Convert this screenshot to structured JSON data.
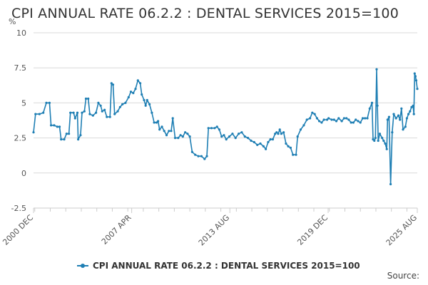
{
  "title": "CPI ANNUAL RATE 06.2.2 : DENTAL SERVICES 2015=100",
  "source": "Source:",
  "colors": {
    "line": "#1f7fb4",
    "grid": "#d9d9d9",
    "text": "#555555",
    "axis": "#cccccc"
  },
  "chart_data": {
    "type": "line",
    "title": "CPI ANNUAL RATE 06.2.2 : DENTAL SERVICES 2015=100",
    "ylabel": "%",
    "xlabel": "",
    "ylim": [
      -2.5,
      10
    ],
    "yticks": [
      "10",
      "7.5",
      "5",
      "2.5",
      "0",
      "-2.5"
    ],
    "xlim": [
      2000.92,
      2025.67
    ],
    "xticks": [
      {
        "label": "2000 DEC",
        "x": 2000.92
      },
      {
        "label": "2007 APR",
        "x": 2007.25
      },
      {
        "label": "2013 AUG",
        "x": 2013.58
      },
      {
        "label": "2019 DEC",
        "x": 2019.92
      },
      {
        "label": "2025 AUG",
        "x": 2025.67
      }
    ],
    "legend": "bottom-center",
    "grid": true,
    "series": [
      {
        "name": "CPI ANNUAL RATE 06.2.2 : DENTAL SERVICES 2015=100",
        "points": [
          [
            2000.92,
            2.9
          ],
          [
            2001.05,
            4.2
          ],
          [
            2001.3,
            4.2
          ],
          [
            2001.55,
            4.3
          ],
          [
            2001.75,
            5.0
          ],
          [
            2001.95,
            5.0
          ],
          [
            2002.05,
            3.4
          ],
          [
            2002.25,
            3.4
          ],
          [
            2002.45,
            3.3
          ],
          [
            2002.6,
            3.3
          ],
          [
            2002.7,
            2.4
          ],
          [
            2002.9,
            2.4
          ],
          [
            2003.05,
            2.8
          ],
          [
            2003.2,
            2.8
          ],
          [
            2003.3,
            4.3
          ],
          [
            2003.5,
            4.3
          ],
          [
            2003.6,
            3.9
          ],
          [
            2003.75,
            4.3
          ],
          [
            2003.8,
            2.4
          ],
          [
            2003.95,
            2.7
          ],
          [
            2004.05,
            4.3
          ],
          [
            2004.2,
            4.4
          ],
          [
            2004.3,
            5.3
          ],
          [
            2004.45,
            5.3
          ],
          [
            2004.55,
            4.2
          ],
          [
            2004.75,
            4.1
          ],
          [
            2004.95,
            4.3
          ],
          [
            2005.1,
            5.0
          ],
          [
            2005.25,
            4.8
          ],
          [
            2005.35,
            4.4
          ],
          [
            2005.5,
            4.5
          ],
          [
            2005.65,
            4.0
          ],
          [
            2005.85,
            4.0
          ],
          [
            2005.95,
            6.4
          ],
          [
            2006.05,
            6.3
          ],
          [
            2006.15,
            4.2
          ],
          [
            2006.35,
            4.4
          ],
          [
            2006.5,
            4.7
          ],
          [
            2006.65,
            4.9
          ],
          [
            2006.85,
            5.0
          ],
          [
            2007.05,
            5.4
          ],
          [
            2007.2,
            5.8
          ],
          [
            2007.35,
            5.7
          ],
          [
            2007.5,
            6.0
          ],
          [
            2007.65,
            6.6
          ],
          [
            2007.8,
            6.4
          ],
          [
            2007.9,
            5.6
          ],
          [
            2008.05,
            5.2
          ],
          [
            2008.15,
            4.8
          ],
          [
            2008.25,
            5.2
          ],
          [
            2008.4,
            4.9
          ],
          [
            2008.55,
            4.3
          ],
          [
            2008.7,
            3.6
          ],
          [
            2008.85,
            3.6
          ],
          [
            2008.95,
            3.7
          ],
          [
            2009.05,
            3.1
          ],
          [
            2009.2,
            3.3
          ],
          [
            2009.35,
            3.0
          ],
          [
            2009.5,
            2.7
          ],
          [
            2009.65,
            3.0
          ],
          [
            2009.8,
            3.0
          ],
          [
            2009.9,
            3.9
          ],
          [
            2010.05,
            2.5
          ],
          [
            2010.25,
            2.5
          ],
          [
            2010.4,
            2.7
          ],
          [
            2010.55,
            2.6
          ],
          [
            2010.7,
            2.9
          ],
          [
            2010.85,
            2.8
          ],
          [
            2011.0,
            2.6
          ],
          [
            2011.15,
            1.5
          ],
          [
            2011.35,
            1.3
          ],
          [
            2011.55,
            1.2
          ],
          [
            2011.75,
            1.2
          ],
          [
            2011.95,
            1.0
          ],
          [
            2012.1,
            1.2
          ],
          [
            2012.2,
            3.2
          ],
          [
            2012.4,
            3.2
          ],
          [
            2012.6,
            3.2
          ],
          [
            2012.75,
            3.3
          ],
          [
            2012.9,
            3.1
          ],
          [
            2013.05,
            2.6
          ],
          [
            2013.2,
            2.7
          ],
          [
            2013.35,
            2.4
          ],
          [
            2013.55,
            2.6
          ],
          [
            2013.75,
            2.8
          ],
          [
            2013.95,
            2.5
          ],
          [
            2014.15,
            2.8
          ],
          [
            2014.35,
            2.9
          ],
          [
            2014.55,
            2.6
          ],
          [
            2014.75,
            2.5
          ],
          [
            2014.95,
            2.3
          ],
          [
            2015.15,
            2.2
          ],
          [
            2015.35,
            2.0
          ],
          [
            2015.55,
            2.1
          ],
          [
            2015.75,
            1.9
          ],
          [
            2015.9,
            1.7
          ],
          [
            2016.05,
            2.2
          ],
          [
            2016.2,
            2.4
          ],
          [
            2016.35,
            2.4
          ],
          [
            2016.5,
            2.8
          ],
          [
            2016.6,
            2.9
          ],
          [
            2016.7,
            2.8
          ],
          [
            2016.8,
            3.1
          ],
          [
            2016.9,
            2.8
          ],
          [
            2017.05,
            2.9
          ],
          [
            2017.2,
            2.1
          ],
          [
            2017.35,
            1.9
          ],
          [
            2017.5,
            1.8
          ],
          [
            2017.65,
            1.3
          ],
          [
            2017.85,
            1.3
          ],
          [
            2017.95,
            2.6
          ],
          [
            2018.15,
            3.1
          ],
          [
            2018.35,
            3.4
          ],
          [
            2018.55,
            3.8
          ],
          [
            2018.75,
            3.9
          ],
          [
            2018.9,
            4.3
          ],
          [
            2019.05,
            4.2
          ],
          [
            2019.2,
            3.9
          ],
          [
            2019.35,
            3.7
          ],
          [
            2019.5,
            3.6
          ],
          [
            2019.65,
            3.8
          ],
          [
            2019.85,
            3.8
          ],
          [
            2019.95,
            3.9
          ],
          [
            2020.15,
            3.8
          ],
          [
            2020.3,
            3.8
          ],
          [
            2020.45,
            3.7
          ],
          [
            2020.6,
            3.9
          ],
          [
            2020.8,
            3.7
          ],
          [
            2020.95,
            3.9
          ],
          [
            2021.1,
            3.9
          ],
          [
            2021.25,
            3.8
          ],
          [
            2021.4,
            3.6
          ],
          [
            2021.55,
            3.6
          ],
          [
            2021.7,
            3.8
          ],
          [
            2021.85,
            3.7
          ],
          [
            2022.0,
            3.6
          ],
          [
            2022.15,
            3.9
          ],
          [
            2022.3,
            3.9
          ],
          [
            2022.45,
            3.9
          ],
          [
            2022.6,
            4.6
          ],
          [
            2022.75,
            5.0
          ],
          [
            2022.82,
            2.4
          ],
          [
            2022.9,
            2.3
          ],
          [
            2022.97,
            2.5
          ],
          [
            2023.05,
            7.4
          ],
          [
            2023.1,
            4.8
          ],
          [
            2023.15,
            2.3
          ],
          [
            2023.25,
            2.8
          ],
          [
            2023.4,
            2.5
          ],
          [
            2023.5,
            2.3
          ],
          [
            2023.6,
            2.1
          ],
          [
            2023.7,
            1.7
          ],
          [
            2023.75,
            3.8
          ],
          [
            2023.85,
            4.0
          ],
          [
            2023.95,
            -0.8
          ],
          [
            2024.05,
            2.9
          ],
          [
            2024.15,
            4.2
          ],
          [
            2024.3,
            3.9
          ],
          [
            2024.45,
            4.1
          ],
          [
            2024.55,
            3.8
          ],
          [
            2024.65,
            4.6
          ],
          [
            2024.75,
            3.1
          ],
          [
            2024.9,
            3.3
          ],
          [
            2025.0,
            3.9
          ],
          [
            2025.1,
            4.2
          ],
          [
            2025.2,
            4.4
          ],
          [
            2025.3,
            4.7
          ],
          [
            2025.4,
            4.8
          ],
          [
            2025.45,
            4.2
          ],
          [
            2025.5,
            7.1
          ],
          [
            2025.55,
            6.9
          ],
          [
            2025.6,
            6.6
          ],
          [
            2025.67,
            6.0
          ]
        ]
      }
    ]
  }
}
